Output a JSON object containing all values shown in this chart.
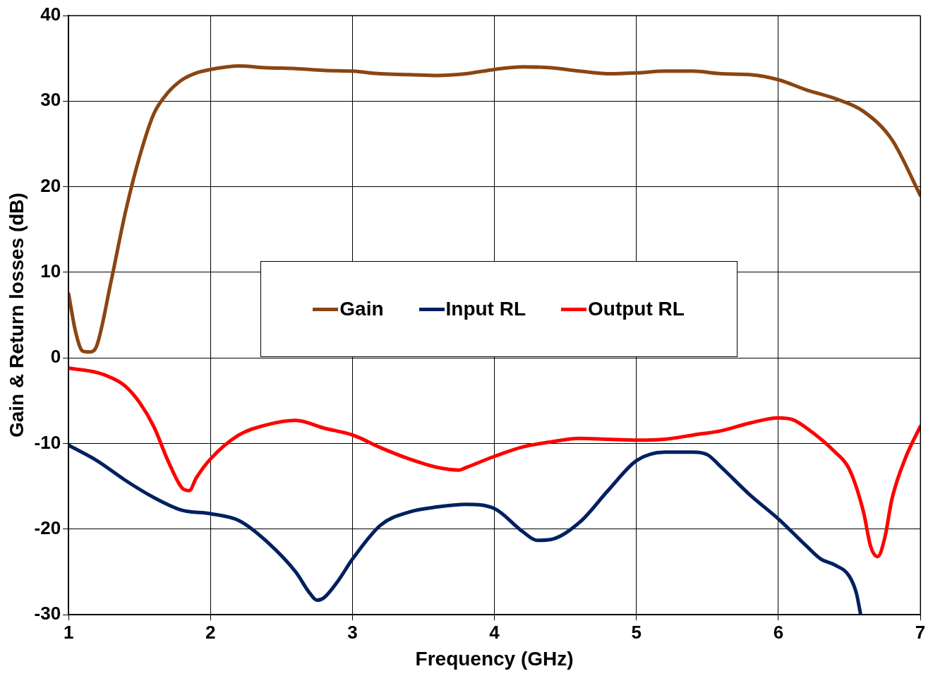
{
  "chart_data": {
    "type": "line",
    "xlabel": "Frequency (GHz)",
    "ylabel": "Gain & Return losses (dB)",
    "xlim": [
      1,
      7
    ],
    "xticks": [
      1,
      2,
      3,
      4,
      5,
      6,
      7
    ],
    "ylim": [
      -30,
      40
    ],
    "yticks": [
      -30,
      -20,
      -10,
      0,
      10,
      20,
      30,
      40
    ],
    "grid": true,
    "legend": "center",
    "marker": "none",
    "line_style": "solid",
    "series": [
      {
        "name": "Gain",
        "color": "#8b4513",
        "x": [
          1,
          1.05,
          1.1,
          1.15,
          1.2,
          1.3,
          1.4,
          1.5,
          1.6,
          1.7,
          1.8,
          1.9,
          2.0,
          2.2,
          2.4,
          2.6,
          2.8,
          3.0,
          3.2,
          3.4,
          3.6,
          3.8,
          4.0,
          4.2,
          4.4,
          4.6,
          4.8,
          5.0,
          5.2,
          5.4,
          5.6,
          5.8,
          6.0,
          6.2,
          6.4,
          6.6,
          6.8,
          7.0
        ],
        "values": [
          7.5,
          3,
          0.8,
          0.7,
          1.5,
          9,
          17,
          23.5,
          28.5,
          31,
          32.5,
          33.3,
          33.7,
          34.1,
          33.9,
          33.8,
          33.6,
          33.5,
          33.2,
          33.1,
          33,
          33.2,
          33.7,
          34,
          33.9,
          33.5,
          33.2,
          33.3,
          33.5,
          33.5,
          33.2,
          33.1,
          32.5,
          31.3,
          30.3,
          28.8,
          25.5,
          19
        ]
      },
      {
        "name": "Input RL",
        "color": "#002060",
        "x": [
          1,
          1.2,
          1.4,
          1.6,
          1.8,
          2.0,
          2.2,
          2.4,
          2.6,
          2.7,
          2.75,
          2.8,
          2.9,
          3.0,
          3.2,
          3.4,
          3.6,
          3.8,
          4.0,
          4.2,
          4.3,
          4.4,
          4.6,
          4.8,
          5.0,
          5.2,
          5.4,
          5.5,
          5.6,
          5.8,
          6.0,
          6.2,
          6.3,
          6.4,
          6.5,
          6.55,
          6.58
        ],
        "values": [
          -10.2,
          -12,
          -14.3,
          -16.3,
          -17.8,
          -18.2,
          -19,
          -21.5,
          -25,
          -27.5,
          -28.3,
          -28,
          -26,
          -23.5,
          -19.5,
          -18,
          -17.4,
          -17.1,
          -17.6,
          -20.3,
          -21.3,
          -21.2,
          -19.2,
          -15.5,
          -12,
          -11,
          -11,
          -11.3,
          -12.8,
          -16,
          -18.8,
          -22,
          -23.5,
          -24.2,
          -25.5,
          -27.5,
          -30
        ]
      },
      {
        "name": "Output RL",
        "color": "#ff0000",
        "x": [
          1,
          1.2,
          1.3,
          1.4,
          1.5,
          1.6,
          1.7,
          1.8,
          1.85,
          1.9,
          2.0,
          2.2,
          2.4,
          2.6,
          2.8,
          3.0,
          3.2,
          3.4,
          3.6,
          3.75,
          3.8,
          4.0,
          4.2,
          4.4,
          4.6,
          4.8,
          5.0,
          5.2,
          5.4,
          5.6,
          5.8,
          6.0,
          6.1,
          6.2,
          6.4,
          6.5,
          6.6,
          6.65,
          6.7,
          6.75,
          6.8,
          6.9,
          7.0
        ],
        "values": [
          -1.2,
          -1.7,
          -2.3,
          -3.3,
          -5.2,
          -8,
          -12,
          -15.2,
          -15.5,
          -14,
          -11.8,
          -9,
          -7.8,
          -7.3,
          -8.2,
          -9,
          -10.5,
          -11.8,
          -12.8,
          -13.1,
          -12.8,
          -11.5,
          -10.4,
          -9.8,
          -9.4,
          -9.5,
          -9.6,
          -9.5,
          -9,
          -8.5,
          -7.6,
          -7,
          -7.2,
          -8.2,
          -11,
          -13,
          -18,
          -22,
          -23.2,
          -21,
          -16.5,
          -11.5,
          -8
        ]
      }
    ]
  }
}
